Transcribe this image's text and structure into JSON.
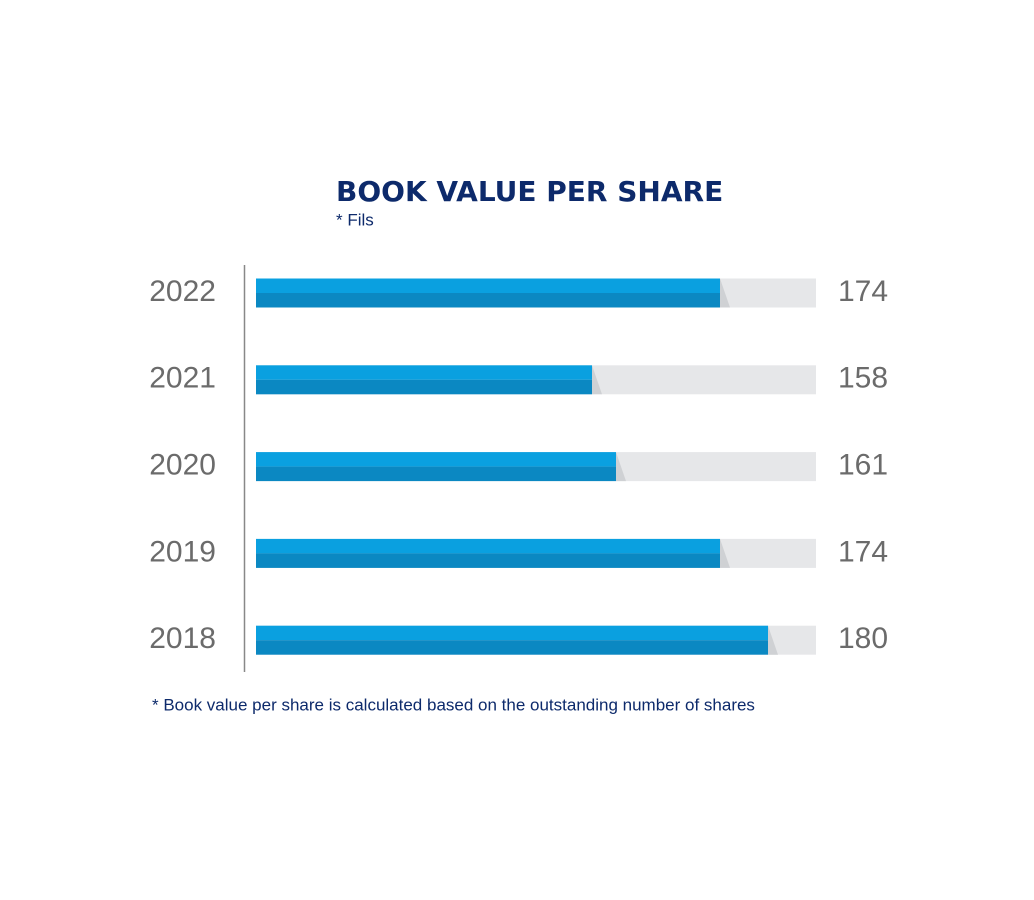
{
  "chart_data": {
    "type": "bar",
    "orientation": "horizontal",
    "title": "BOOK VALUE PER SHARE",
    "subtitle": "* Fils",
    "categories": [
      "2022",
      "2021",
      "2020",
      "2019",
      "2018"
    ],
    "values": [
      174,
      158,
      161,
      174,
      180
    ],
    "color": "#0aa0e0",
    "xlim": [
      116,
      186
    ],
    "footnote": "* Book value per share is calculated based on the outstanding number of shares"
  }
}
